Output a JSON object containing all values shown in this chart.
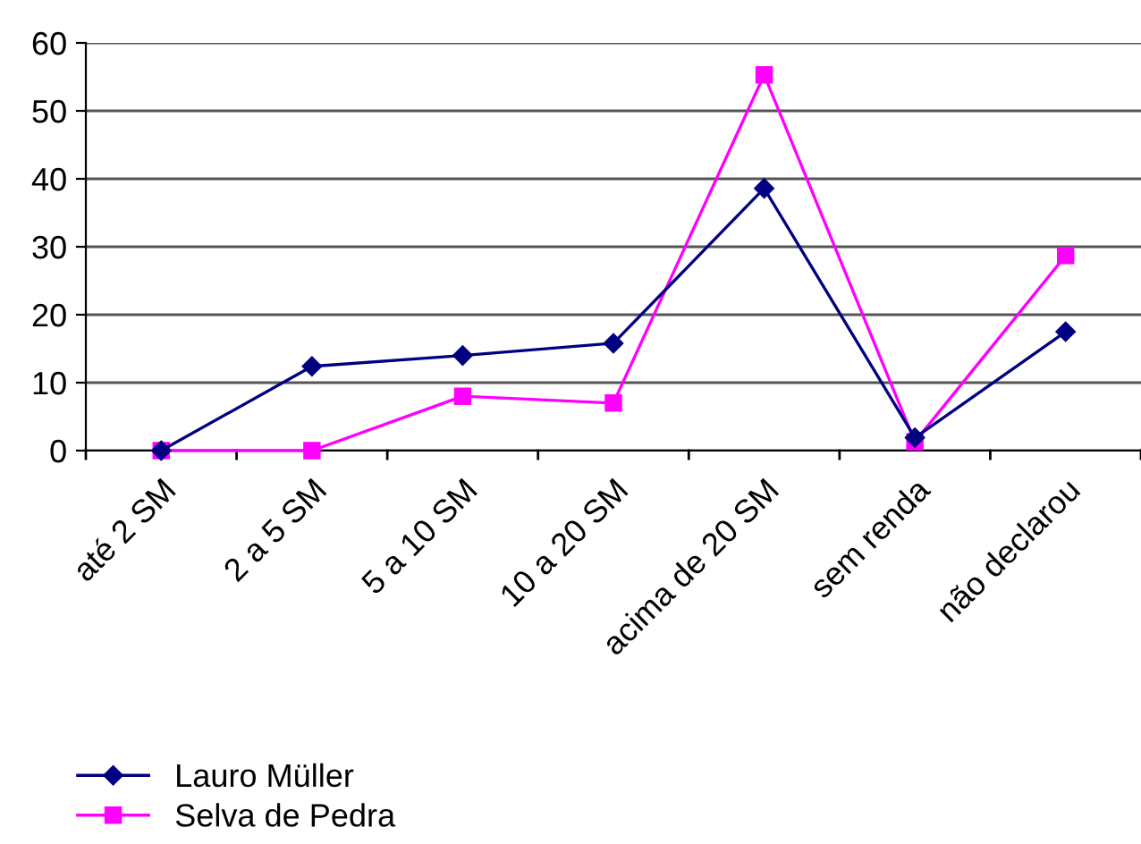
{
  "chart_data": {
    "type": "line",
    "categories": [
      "até 2 SM",
      "2 a 5 SM",
      "5 a 10 SM",
      "10 a 20 SM",
      "acima de 20 SM",
      "sem renda",
      "não declarou"
    ],
    "series": [
      {
        "name": "Lauro Müller",
        "color": "#000080",
        "marker": "diamond",
        "values": [
          0,
          12.4,
          14.0,
          15.8,
          38.6,
          1.9,
          17.5
        ]
      },
      {
        "name": "Selva de Pedra",
        "color": "#ff00ff",
        "marker": "square",
        "values": [
          0,
          0,
          8.0,
          7.0,
          55.3,
          1.3,
          28.7
        ]
      }
    ],
    "ylim": [
      0,
      60
    ],
    "yticks": [
      0,
      10,
      20,
      30,
      40,
      50,
      60
    ],
    "grid": "y",
    "legend": "bottom left",
    "line_style": "solid"
  }
}
